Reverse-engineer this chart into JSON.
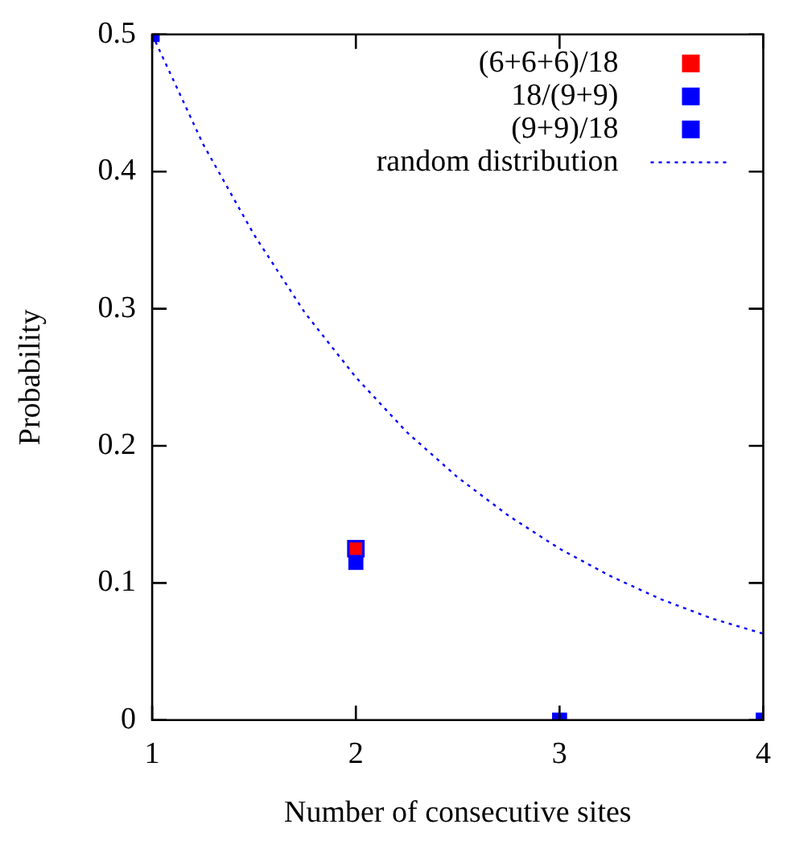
{
  "chart_data": {
    "type": "scatter",
    "xlabel": "Number of consecutive sites",
    "ylabel": "Probability",
    "xlim": [
      1,
      4
    ],
    "xticks": [
      1,
      2,
      3,
      4
    ],
    "ylim": [
      0,
      0.5
    ],
    "yticks": [
      0,
      0.1,
      0.2,
      0.3,
      0.4,
      0.5
    ],
    "x": [
      1,
      2,
      3,
      4
    ],
    "marker": "square",
    "grid": false,
    "legend": "top right",
    "series": [
      {
        "name": "(6+6+6)/18",
        "color": "#ff0000",
        "values": [
          null,
          0.125,
          null,
          null
        ]
      },
      {
        "name": "18/(9+9)",
        "color": "#0000ff",
        "values": [
          0.5,
          0.115,
          0,
          0
        ]
      },
      {
        "name": "(9+9)/18",
        "color": "#0000ff",
        "values": [
          null,
          0.125,
          null,
          null
        ]
      },
      {
        "name": "random distribution",
        "type": "line",
        "line_style": "dotted",
        "marker": "none",
        "color": "#0000ff",
        "x": [
          1,
          1.25,
          1.5,
          1.75,
          2,
          2.25,
          2.5,
          2.75,
          3,
          3.25,
          3.5,
          3.75,
          4
        ],
        "values": [
          0.5,
          0.42,
          0.354,
          0.297,
          0.25,
          0.21,
          0.177,
          0.149,
          0.125,
          0.105,
          0.088,
          0.074,
          0.063
        ]
      }
    ]
  }
}
